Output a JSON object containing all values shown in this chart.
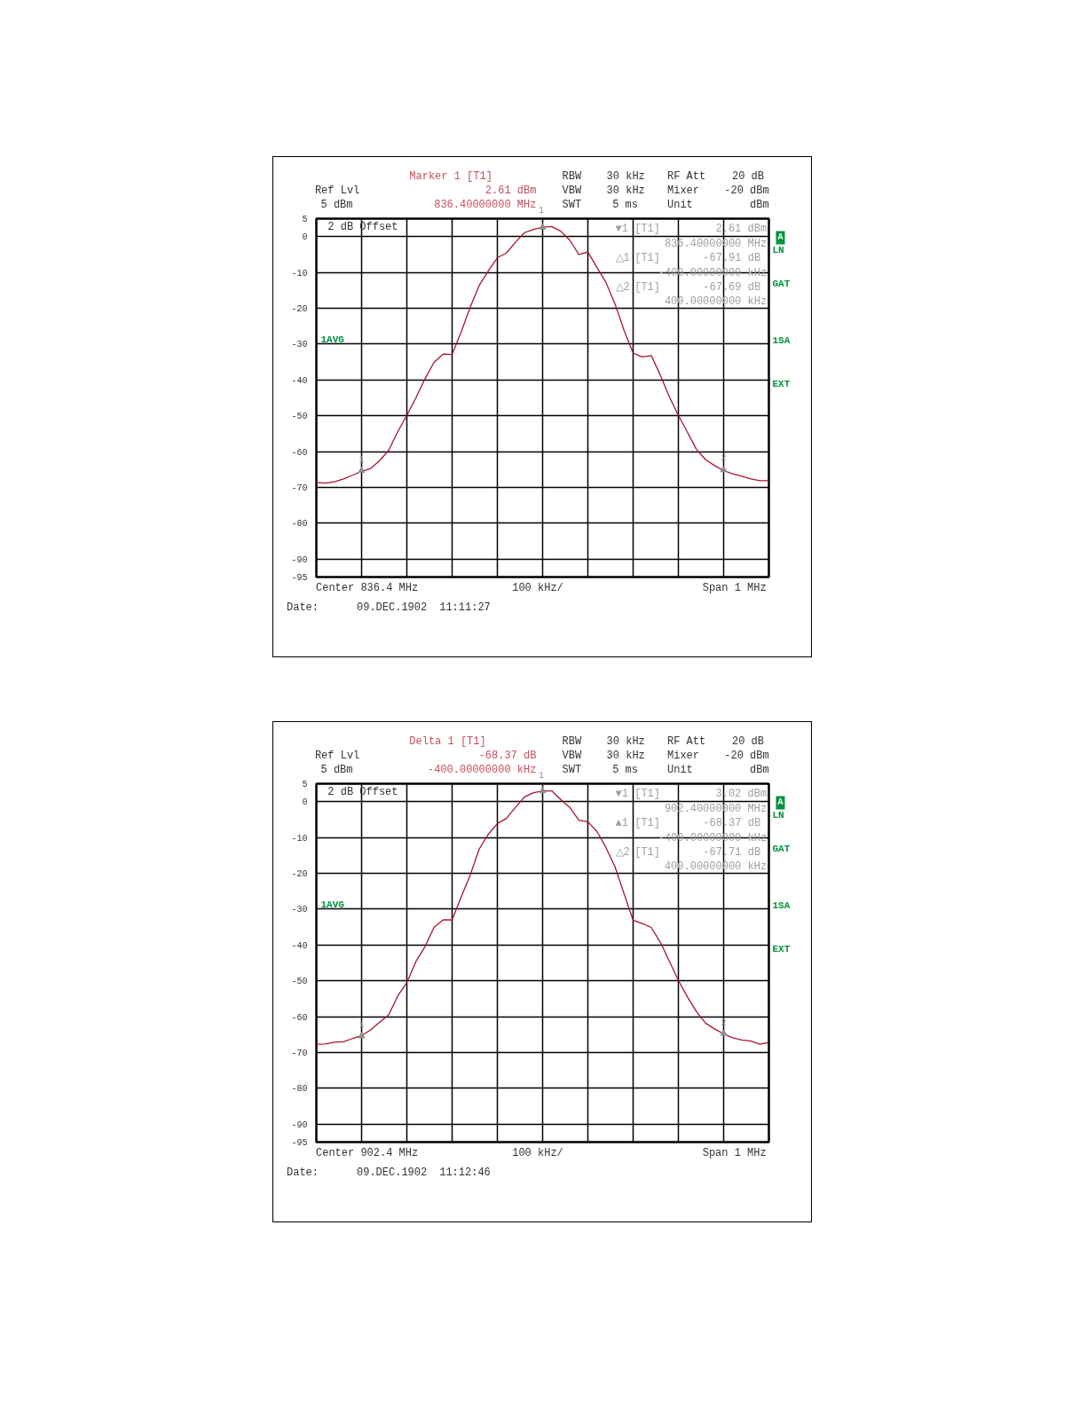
{
  "chart_data": [
    {
      "type": "line",
      "categories": [
        null,
        null,
        null,
        null,
        null,
        null,
        null,
        null,
        null,
        null,
        null,
        null,
        null,
        null,
        null,
        null,
        null,
        null,
        null,
        null,
        null,
        null,
        null,
        null,
        null,
        null,
        null,
        null,
        null,
        null,
        null,
        null,
        null,
        null,
        null,
        null,
        null,
        null,
        null,
        null,
        null,
        null,
        null,
        null,
        null,
        null,
        null,
        null,
        null,
        null,
        null
      ],
      "ylim": [
        -95,
        5
      ],
      "yticks": [
        5,
        0,
        -10,
        -20,
        -30,
        -40,
        -50,
        -60,
        -70,
        -80,
        -90,
        -95
      ],
      "grid": true,
      "tick_labels": "y",
      "series": [
        {
          "color": "#a8142c",
          "values": [
            -68.6,
            -68.8,
            -68.4,
            -67.6,
            -66.6,
            -65.5,
            -64.7,
            -62.5,
            -59.6,
            -54.4,
            -49.9,
            -45.0,
            -39.7,
            -35.1,
            -32.8,
            -32.9,
            -26.6,
            -19.7,
            -13.6,
            -9.6,
            -5.9,
            -4.6,
            -1.6,
            1.1,
            2.0,
            2.6,
            2.8,
            1.5,
            -1.0,
            -5.0,
            -4.3,
            -8.6,
            -12.8,
            -18.8,
            -26.2,
            -32.5,
            -33.6,
            -33.2,
            -38.6,
            -44.7,
            -49.9,
            -54.6,
            -59.4,
            -62.2,
            -63.9,
            -65.3,
            -66.2,
            -66.9,
            -67.6,
            -68.1,
            -68.1
          ]
        },
        {
          "type": "scatter",
          "marker": "triangle",
          "color": "#8c8c8c",
          "values": [
            null,
            null,
            null,
            null,
            null,
            -65.3,
            null,
            null,
            null,
            null,
            null,
            null,
            null,
            null,
            null,
            null,
            null,
            null,
            null,
            null,
            null,
            null,
            null,
            null,
            null,
            2.6,
            null,
            null,
            null,
            null,
            null,
            null,
            null,
            null,
            null,
            null,
            null,
            null,
            null,
            null,
            null,
            null,
            null,
            null,
            null,
            -65.1,
            null,
            null,
            null,
            null,
            null
          ]
        }
      ],
      "annotations": [
        "Ref Lvl",
        "5 dBm",
        "Marker 1 [T1]",
        "2.61 dBm",
        "836.40000000 MHz",
        "RBW",
        "30 kHz",
        "VBW",
        "30 kHz",
        "SWT",
        "5 ms",
        "RF Att",
        "20 dB",
        "Mixer",
        "-20 dBm",
        "Unit",
        "dBm",
        "2 dB Offset",
        "▼1",
        "[T1]",
        "2.61 dBm",
        "836.40000000 MHz",
        "△1",
        "[T1]",
        "-67.91 dB",
        "-400.00000000 kHz",
        "△2",
        "[T1]",
        "-67.69 dB",
        "400.00000000 kHz",
        "A",
        "LN",
        "GAT",
        "1AVG",
        "1SA",
        "EXT",
        "Center 836.4 MHz",
        "100 kHz/",
        "Span 1 MHz",
        "Date:",
        "09.DEC.1902",
        "11:11:27",
        "1",
        "1",
        "2"
      ]
    },
    {
      "type": "line",
      "categories": [
        null,
        null,
        null,
        null,
        null,
        null,
        null,
        null,
        null,
        null,
        null,
        null,
        null,
        null,
        null,
        null,
        null,
        null,
        null,
        null,
        null,
        null,
        null,
        null,
        null,
        null,
        null,
        null,
        null,
        null,
        null,
        null,
        null,
        null,
        null,
        null,
        null,
        null,
        null,
        null,
        null,
        null,
        null,
        null,
        null,
        null,
        null,
        null,
        null,
        null,
        null
      ],
      "ylim": [
        -95,
        5
      ],
      "yticks": [
        5,
        0,
        -10,
        -20,
        -30,
        -40,
        -50,
        -60,
        -70,
        -80,
        -90,
        -95
      ],
      "grid": true,
      "tick_labels": "y",
      "series": [
        {
          "color": "#a8142c",
          "values": [
            -67.7,
            -67.6,
            -67.1,
            -67.0,
            -66.1,
            -65.3,
            -63.7,
            -61.5,
            -59.5,
            -54.2,
            -50.5,
            -44.6,
            -40.5,
            -35.1,
            -33.0,
            -33.0,
            -26.6,
            -20.5,
            -13.2,
            -9.1,
            -6.1,
            -4.7,
            -1.6,
            1.3,
            2.5,
            3.0,
            3.0,
            0.6,
            -1.6,
            -5.2,
            -5.6,
            -8.3,
            -12.8,
            -18.2,
            -25.7,
            -33.1,
            -34.0,
            -35.1,
            -39.2,
            -44.5,
            -49.9,
            -54.5,
            -58.6,
            -61.8,
            -63.4,
            -64.8,
            -65.9,
            -66.5,
            -66.8,
            -67.7,
            -67.2
          ]
        },
        {
          "type": "scatter",
          "marker": "triangle",
          "color": "#8c8c8c",
          "values": [
            null,
            null,
            null,
            null,
            null,
            -65.4,
            null,
            null,
            null,
            null,
            null,
            null,
            null,
            null,
            null,
            null,
            null,
            null,
            null,
            null,
            null,
            null,
            null,
            null,
            null,
            3.0,
            null,
            null,
            null,
            null,
            null,
            null,
            null,
            null,
            null,
            null,
            null,
            null,
            null,
            null,
            null,
            null,
            null,
            null,
            null,
            -64.7,
            null,
            null,
            null,
            null,
            null
          ]
        }
      ],
      "annotations": [
        "Ref Lvl",
        "5 dBm",
        "Delta 1 [T1]",
        "-68.37 dB",
        "-400.00000000 kHz",
        "RBW",
        "30 kHz",
        "VBW",
        "30 kHz",
        "SWT",
        "5 ms",
        "RF Att",
        "20 dB",
        "Mixer",
        "-20 dBm",
        "Unit",
        "dBm",
        "2 dB Offset",
        "▼1",
        "[T1]",
        "3.02 dBm",
        "902.40000000 MHz",
        "▲1",
        "[T1]",
        "-68.37 dB",
        "-400.00000000 kHz",
        "△2",
        "[T1]",
        "-67.71 dB",
        "400.00000000 kHz",
        "A",
        "LN",
        "GAT",
        "1AVG",
        "1SA",
        "EXT",
        "Center 902.4 MHz",
        "100 kHz/",
        "Span 1 MHz",
        "Date:",
        "09.DEC.1902",
        "11:12:46",
        "1",
        "1",
        "2"
      ]
    }
  ]
}
